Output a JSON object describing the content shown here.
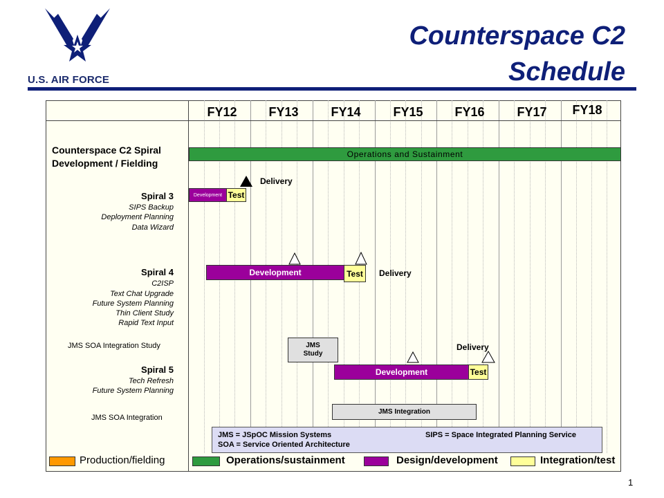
{
  "header": {
    "logo_text": "U.S. AIR FORCE",
    "title_line1": "Counterspace C2",
    "title_line2": "Schedule"
  },
  "colors": {
    "brand_navy": "#0e1f78",
    "operations_green": "#2f9b3f",
    "development_purple": "#9b009b",
    "test_yellow": "#ffff99",
    "production_orange": "#ff9900",
    "jms_gray": "#e0e0e0",
    "notes_lavender": "#dcdcf4"
  },
  "fiscal_years": [
    "FY12",
    "FY13",
    "FY14",
    "FY15",
    "FY16",
    "FY17",
    "FY18"
  ],
  "rows": {
    "spiral_program": {
      "line1": "Counterspace C2 Spiral",
      "line2": "Development / Fielding"
    },
    "spiral3": {
      "title": "Spiral 3",
      "items": [
        "SIPS Backup",
        "Deployment Planning",
        "Data Wizard"
      ]
    },
    "spiral4": {
      "title": "Spiral 4",
      "items": [
        "C2ISP",
        "Text Chat Upgrade",
        "Future System Planning",
        "Thin Client Study",
        "Rapid Text Input"
      ]
    },
    "jms_study": {
      "label": "JMS SOA Integration Study"
    },
    "spiral5": {
      "title": "Spiral 5",
      "items": [
        "Tech Refresh",
        "Future System Planning"
      ]
    },
    "jms_integration": {
      "label": "JMS SOA Integration"
    }
  },
  "bars": {
    "operations": "Operations and Sustainment",
    "s3_dev": "Development",
    "s3_test": "Test",
    "s4_dev": "Development",
    "s4_test": "Test",
    "jms_study_l1": "JMS",
    "jms_study_l2": "Study",
    "s5_dev": "Development",
    "s5_test": "Test",
    "jms_integration": "JMS Integration"
  },
  "milestones": {
    "s3_delivery": "Delivery",
    "s4_delivery": "Delivery",
    "s5_delivery": "Delivery"
  },
  "notes": {
    "jms": "JMS = JSpOC Mission Systems",
    "soa": "SOA = Service Oriented Architecture",
    "sips": "SIPS = Space Integrated Planning Service"
  },
  "legend": {
    "production": "Production/fielding",
    "operations": "Operations/sustainment",
    "design": "Design/development",
    "integration": "Integration/test"
  },
  "page_number": "1"
}
